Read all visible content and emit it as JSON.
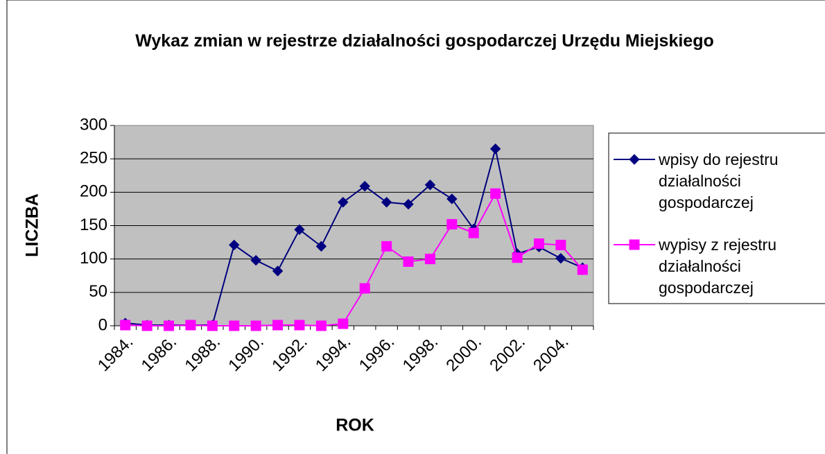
{
  "chart_data": {
    "type": "line",
    "title": "Wykaz zmian w rejestrze działalności gospodarczej Urzędu Miejskiego",
    "x_label": "ROK",
    "y_label": "LICZBA",
    "categories": [
      "1984.",
      null,
      "1986.",
      null,
      "1988.",
      null,
      "1990.",
      null,
      "1992.",
      null,
      "1994.",
      null,
      "1996.",
      null,
      "1998.",
      null,
      "2000.",
      null,
      "2002.",
      null,
      "2004.",
      null
    ],
    "series": [
      {
        "name": "wpisy do rejestru działalności gospodarczej",
        "color": "#000080",
        "marker": "diamond",
        "values": [
          4,
          1,
          1,
          1,
          1,
          121,
          98,
          82,
          144,
          119,
          185,
          209,
          185,
          182,
          211,
          190,
          145,
          265,
          108,
          118,
          101,
          87
        ]
      },
      {
        "name": "wypisy z rejestru działalności gospodarczej",
        "color": "#ff00ff",
        "marker": "square",
        "values": [
          1,
          0,
          0,
          1,
          0,
          0,
          0,
          1,
          1,
          0,
          3,
          56,
          119,
          96,
          100,
          152,
          139,
          198,
          102,
          123,
          121,
          84
        ]
      }
    ],
    "ylim": [
      0,
      300
    ],
    "yticks": [
      0,
      50,
      100,
      150,
      200,
      250,
      300
    ],
    "grid": true,
    "legend": "right"
  }
}
